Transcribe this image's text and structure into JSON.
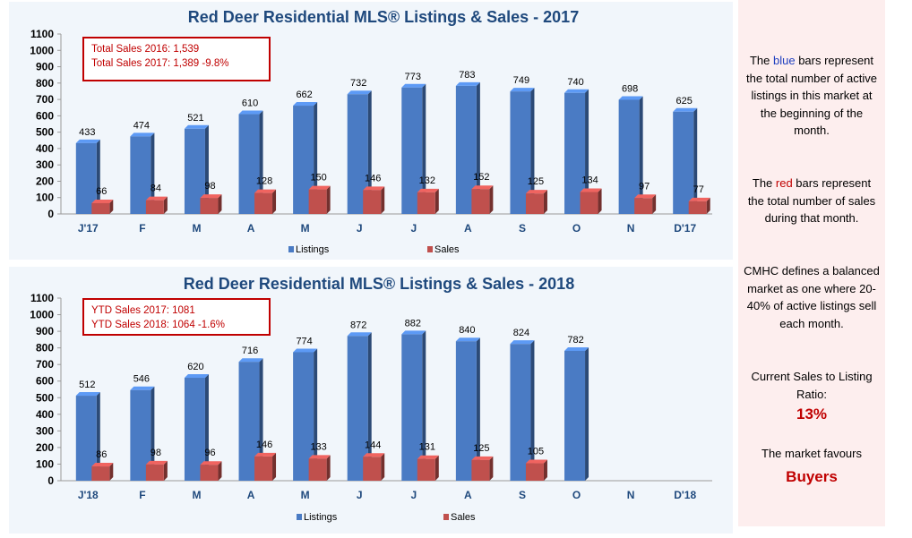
{
  "chart_data": [
    {
      "type": "bar",
      "title": "Red Deer Residential MLS® Listings & Sales - 2017",
      "categories": [
        "J'17",
        "F",
        "M",
        "A",
        "M",
        "J",
        "J",
        "A",
        "S",
        "O",
        "N",
        "D'17"
      ],
      "series": [
        {
          "name": "Listings",
          "color": "#4a7bc4",
          "values": [
            433,
            474,
            521,
            610,
            662,
            732,
            773,
            783,
            749,
            740,
            698,
            625
          ]
        },
        {
          "name": "Sales",
          "color": "#c0504d",
          "values": [
            66,
            84,
            98,
            128,
            150,
            146,
            132,
            152,
            125,
            134,
            97,
            77
          ]
        }
      ],
      "ylim": [
        0,
        1100
      ],
      "yticks": [
        0,
        100,
        200,
        300,
        400,
        500,
        600,
        700,
        800,
        900,
        1000,
        1100
      ],
      "legend": "bottom",
      "annotation": [
        "Total Sales 2016: 1,539",
        "Total Sales 2017: 1,389  -9.8%"
      ]
    },
    {
      "type": "bar",
      "title": "Red Deer Residential MLS® Listings & Sales - 2018",
      "categories": [
        "J'18",
        "F",
        "M",
        "A",
        "M",
        "J",
        "J",
        "A",
        "S",
        "O",
        "N",
        "D'18"
      ],
      "series": [
        {
          "name": "Listings",
          "color": "#4a7bc4",
          "values": [
            512,
            546,
            620,
            716,
            774,
            872,
            882,
            840,
            824,
            782,
            null,
            null
          ]
        },
        {
          "name": "Sales",
          "color": "#c0504d",
          "values": [
            86,
            98,
            96,
            146,
            133,
            144,
            131,
            125,
            105,
            null,
            null,
            null
          ]
        }
      ],
      "ylim": [
        0,
        1100
      ],
      "yticks": [
        0,
        100,
        200,
        300,
        400,
        500,
        600,
        700,
        800,
        900,
        1000,
        1100
      ],
      "legend": "bottom",
      "annotation": [
        "YTD Sales 2017: 1081",
        "YTD Sales 2018: 1064  -1.6%"
      ]
    }
  ],
  "sidebar": {
    "p1_a": "The ",
    "p1_blue": "blue",
    "p1_b": " bars represent the total number of active listings in this market at the beginning of the month.",
    "p2_a": "The ",
    "p2_red": "red",
    "p2_b": " bars represent the total number of sales during that month.",
    "p3": "CMHC defines a balanced market as one where 20-40% of active listings sell each month.",
    "p4": "Current Sales to Listing Ratio:",
    "ratio": "13%",
    "p5": "The market favours",
    "favours": "Buyers"
  }
}
